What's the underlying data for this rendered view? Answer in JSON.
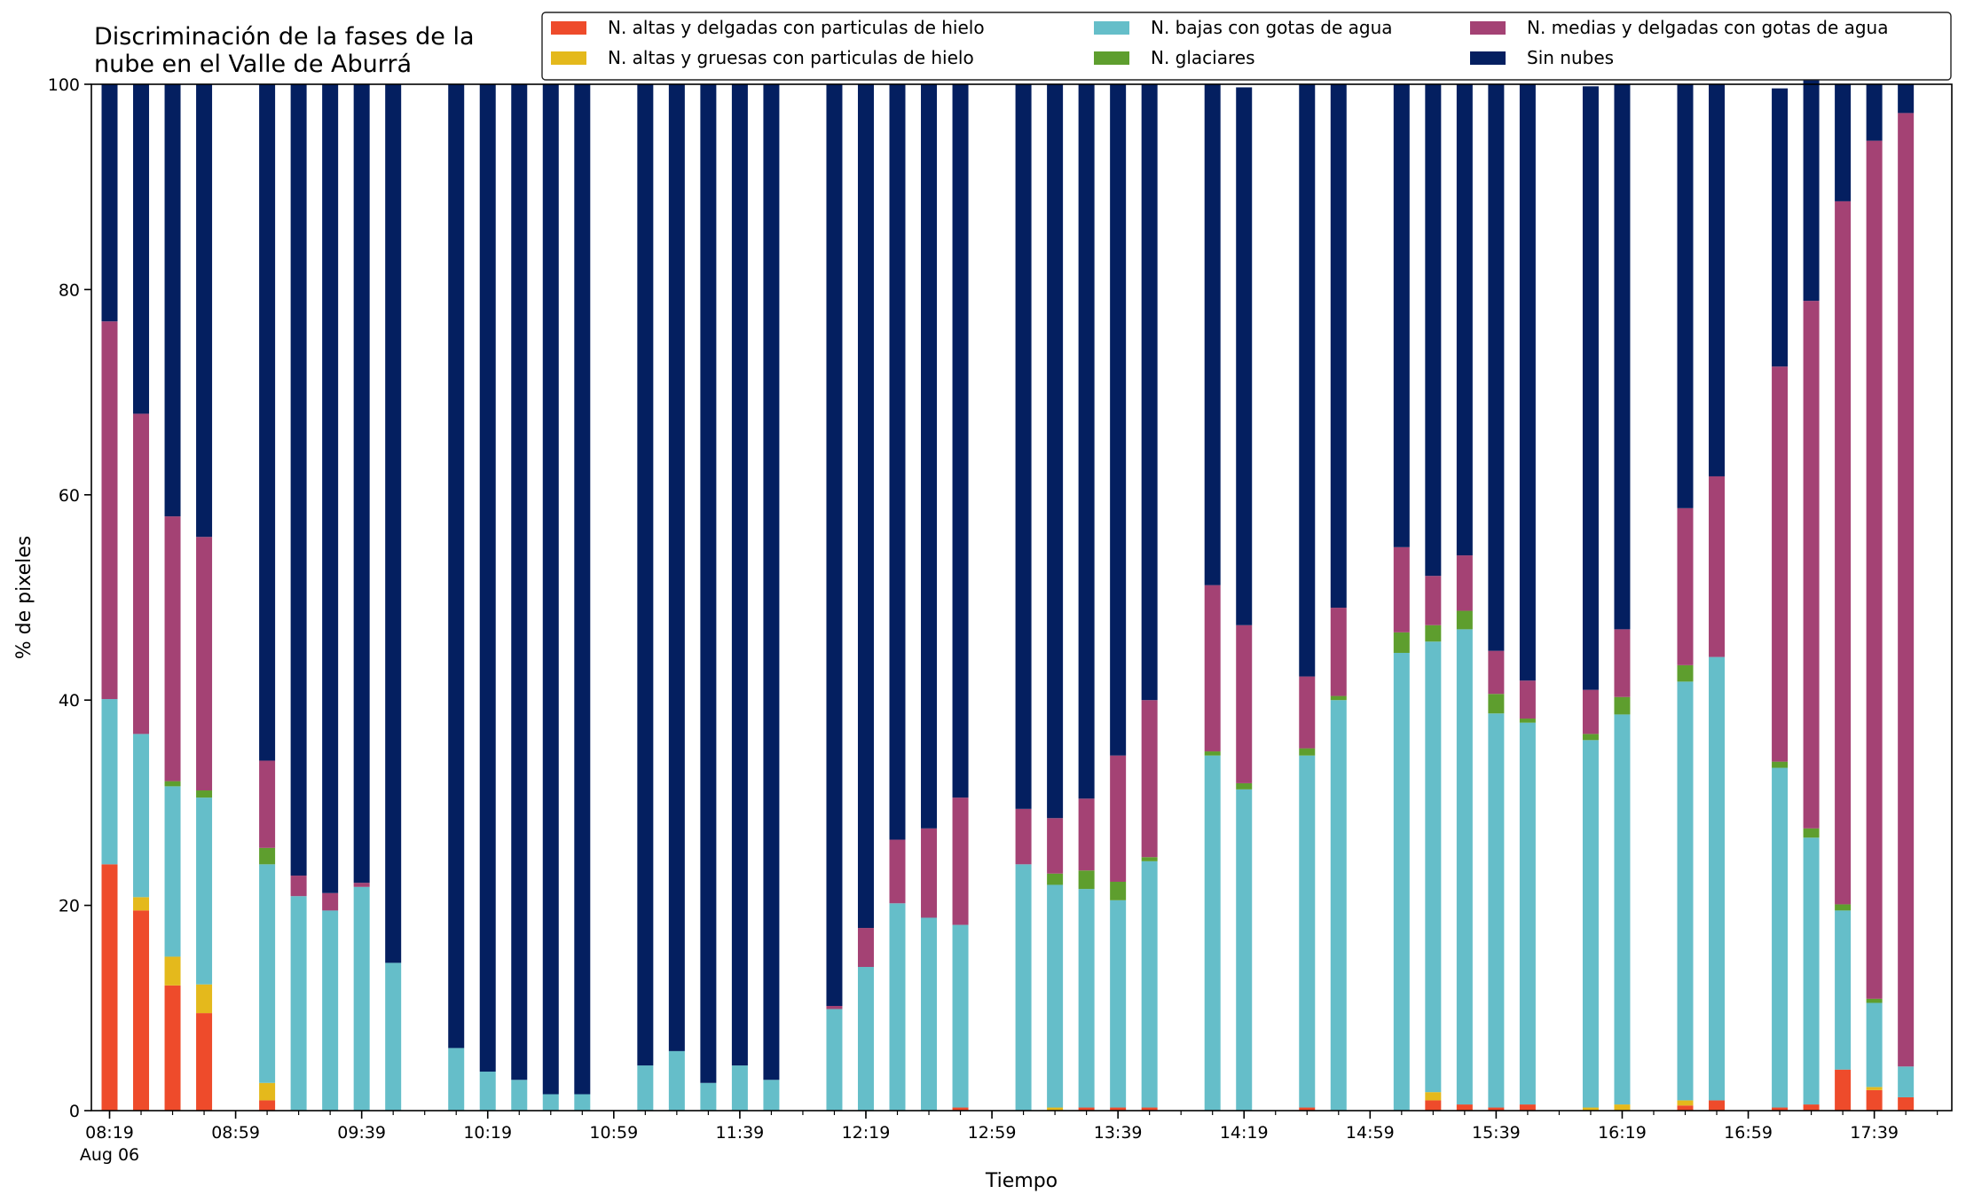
{
  "chart_data": {
    "type": "bar",
    "stacked": true,
    "title": "Discriminación de la fases de la\nnube en el Valle de Aburrá",
    "xlabel": "Tiempo",
    "ylabel": "% de pixeles",
    "ylim": [
      0,
      100
    ],
    "yticks": [
      0,
      20,
      40,
      60,
      80,
      100
    ],
    "xticks": [
      {
        "slot": 0,
        "label": "08:19",
        "sublabel": "Aug 06"
      },
      {
        "slot": 4,
        "label": "08:59"
      },
      {
        "slot": 8,
        "label": "09:39"
      },
      {
        "slot": 12,
        "label": "10:19"
      },
      {
        "slot": 16,
        "label": "10:59"
      },
      {
        "slot": 20,
        "label": "11:39"
      },
      {
        "slot": 24,
        "label": "12:19"
      },
      {
        "slot": 28,
        "label": "12:59"
      },
      {
        "slot": 32,
        "label": "13:39"
      },
      {
        "slot": 36,
        "label": "14:19"
      },
      {
        "slot": 40,
        "label": "14:59"
      },
      {
        "slot": 44,
        "label": "15:39"
      },
      {
        "slot": 48,
        "label": "16:19"
      },
      {
        "slot": 52,
        "label": "16:59"
      },
      {
        "slot": 56,
        "label": "17:39"
      }
    ],
    "slot_count": 59,
    "legend_position": "top-right",
    "slots": [
      0,
      1,
      2,
      3,
      5,
      6,
      7,
      8,
      9,
      11,
      12,
      13,
      14,
      15,
      17,
      18,
      19,
      20,
      21,
      23,
      24,
      25,
      26,
      27,
      29,
      30,
      31,
      32,
      33,
      35,
      36,
      38,
      39,
      41,
      42,
      43,
      44,
      45,
      47,
      48,
      50,
      51,
      53,
      54,
      55,
      56,
      57
    ],
    "series": [
      {
        "name": "N. altas y delgadas con particulas de hielo",
        "color": "#ee4b2b",
        "values": [
          24,
          19.5,
          12.2,
          9.5,
          1,
          0,
          0,
          0,
          0,
          0,
          0,
          0,
          0,
          0,
          0,
          0,
          0,
          0,
          0,
          0,
          0,
          0,
          0,
          0.3,
          0,
          0,
          0.3,
          0.3,
          0.3,
          0,
          0,
          0.3,
          0,
          0,
          1,
          0.6,
          0.3,
          0.6,
          0,
          0,
          0.5,
          1,
          0.3,
          0.6,
          4,
          2,
          1.3
        ]
      },
      {
        "name": "N. altas y gruesas con particulas de hielo",
        "color": "#e4b91c",
        "values": [
          0,
          1.3,
          2.8,
          2.8,
          1.7,
          0,
          0,
          0,
          0,
          0,
          0,
          0,
          0,
          0,
          0,
          0,
          0,
          0,
          0,
          0,
          0,
          0,
          0,
          0,
          0,
          0.3,
          0,
          0,
          0,
          0,
          0,
          0,
          0,
          0,
          0.8,
          0,
          0,
          0,
          0.3,
          0.6,
          0.5,
          0,
          0,
          0,
          0,
          0.3,
          0
        ]
      },
      {
        "name": "N. bajas con gotas de agua",
        "color": "#65bec9",
        "values": [
          16.1,
          15.9,
          16.6,
          18.2,
          21.3,
          20.9,
          19.5,
          21.8,
          14.4,
          6.1,
          3.8,
          3,
          1.6,
          1.6,
          4.4,
          5.8,
          2.7,
          4.4,
          3,
          9.9,
          14,
          20.2,
          18.8,
          17.8,
          24,
          21.7,
          21.3,
          20.2,
          24,
          34.6,
          31.3,
          34.3,
          40,
          44.6,
          43.9,
          46.3,
          38.4,
          37.2,
          35.8,
          38,
          40.8,
          43.2,
          33.1,
          26,
          15.5,
          8.2,
          3
        ]
      },
      {
        "name": "N. glaciares",
        "color": "#5e9e2e",
        "values": [
          0,
          0,
          0.5,
          0.7,
          1.6,
          0,
          0,
          0,
          0,
          0,
          0,
          0,
          0,
          0,
          0,
          0,
          0,
          0,
          0,
          0,
          0,
          0,
          0,
          0,
          0,
          1.1,
          1.8,
          1.8,
          0.4,
          0.4,
          0.6,
          0.7,
          0.4,
          2,
          1.6,
          1.8,
          1.9,
          0.4,
          0.6,
          1.7,
          1.6,
          0,
          0.6,
          0.9,
          0.6,
          0.4,
          0
        ]
      },
      {
        "name": "N. medias y delgadas con gotas de agua",
        "color": "#a44274",
        "values": [
          36.8,
          31.2,
          25.8,
          24.7,
          8.5,
          2,
          1.7,
          0.4,
          0,
          0,
          0,
          0,
          0,
          0,
          0,
          0,
          0,
          0,
          0,
          0.3,
          3.8,
          6.2,
          8.7,
          12.4,
          5.4,
          5.4,
          7,
          12.3,
          15.3,
          16.2,
          15.4,
          7,
          8.6,
          8.3,
          4.8,
          5.4,
          4.2,
          3.7,
          4.3,
          6.6,
          15.3,
          17.6,
          38.5,
          51.4,
          68.5,
          83.6,
          92.9
        ]
      },
      {
        "name": "Sin nubes",
        "color": "#041f60",
        "values": [
          23.1,
          32.1,
          42.1,
          44.1,
          65.9,
          77.1,
          78.8,
          77.8,
          85.6,
          93.9,
          96.2,
          97,
          98.4,
          98.4,
          95.6,
          94.2,
          97.3,
          95.6,
          97,
          89.8,
          82.2,
          73.6,
          72.5,
          69.5,
          70.6,
          71.5,
          69.6,
          65.4,
          60,
          48.8,
          52.4,
          57.7,
          51,
          45.1,
          47.9,
          45.9,
          55.2,
          58.1,
          58.8,
          53.1,
          41.3,
          38.2,
          27.1,
          21.7,
          11.4,
          5.5,
          2.8
        ]
      }
    ]
  }
}
